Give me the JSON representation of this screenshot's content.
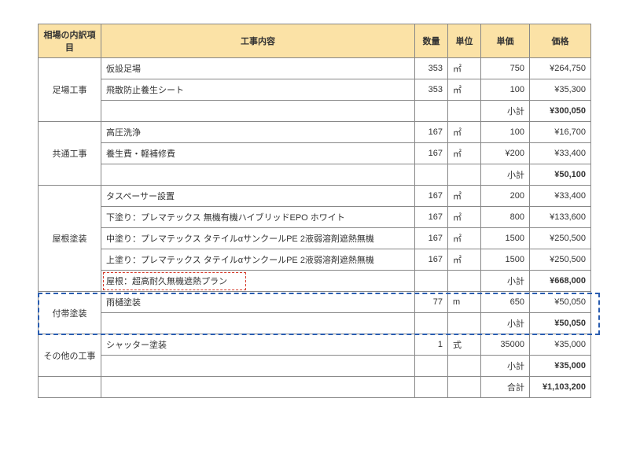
{
  "headers": {
    "category": "相場の内訳項目",
    "desc": "工事内容",
    "qty": "数量",
    "unit": "単位",
    "uprice": "単価",
    "total": "価格"
  },
  "sections": [
    {
      "category": "足場工事",
      "rows": [
        {
          "desc": "仮設足場",
          "qty": "353",
          "unit": "㎡",
          "uprice": "750",
          "total": "¥264,750"
        },
        {
          "desc": "飛散防止養生シート",
          "qty": "353",
          "unit": "㎡",
          "uprice": "100",
          "total": "¥35,300"
        }
      ],
      "subtotal_label": "小計",
      "subtotal": "¥300,050"
    },
    {
      "category": "共通工事",
      "rows": [
        {
          "desc": "高圧洗浄",
          "qty": "167",
          "unit": "㎡",
          "uprice": "100",
          "total": "¥16,700"
        },
        {
          "desc": "養生費・軽補修費",
          "qty": "167",
          "unit": "㎡",
          "uprice": "¥200",
          "total": "¥33,400"
        }
      ],
      "subtotal_label": "小計",
      "subtotal": "¥50,100"
    },
    {
      "category": "屋根塗装",
      "rows": [
        {
          "desc": "タスペーサー設置",
          "qty": "167",
          "unit": "㎡",
          "uprice": "200",
          "total": "¥33,400"
        },
        {
          "desc": "下塗り：プレマテックス 無機有機ハイブリッドEPO ホワイト",
          "qty": "167",
          "unit": "㎡",
          "uprice": "800",
          "total": "¥133,600"
        },
        {
          "desc": "中塗り：プレマテックス タテイルαサンクールPE 2液弱溶剤遮熱無機",
          "qty": "167",
          "unit": "㎡",
          "uprice": "1500",
          "total": "¥250,500"
        },
        {
          "desc": "上塗り：プレマテックス タテイルαサンクールPE 2液弱溶剤遮熱無機",
          "qty": "167",
          "unit": "㎡",
          "uprice": "1500",
          "total": "¥250,500"
        }
      ],
      "plan_note": "屋根：超高耐久無機遮熱プラン",
      "subtotal_label": "小計",
      "subtotal": "¥668,000"
    },
    {
      "category": "付帯塗装",
      "rows": [
        {
          "desc": "雨樋塗装",
          "qty": "77",
          "unit": "m",
          "uprice": "650",
          "total": "¥50,050"
        }
      ],
      "subtotal_label": "小計",
      "subtotal": "¥50,050"
    },
    {
      "category": "その他の工事",
      "rows": [
        {
          "desc": "シャッター塗装",
          "qty": "1",
          "unit": "式",
          "uprice": "35000",
          "total": "¥35,000"
        }
      ],
      "subtotal_label": "小計",
      "subtotal": "¥35,000"
    }
  ],
  "grand_label": "合計",
  "grand_total": "¥1,103,200",
  "highlight": {
    "red_color": "#d63a2a",
    "blue_color": "#2a5db0"
  }
}
